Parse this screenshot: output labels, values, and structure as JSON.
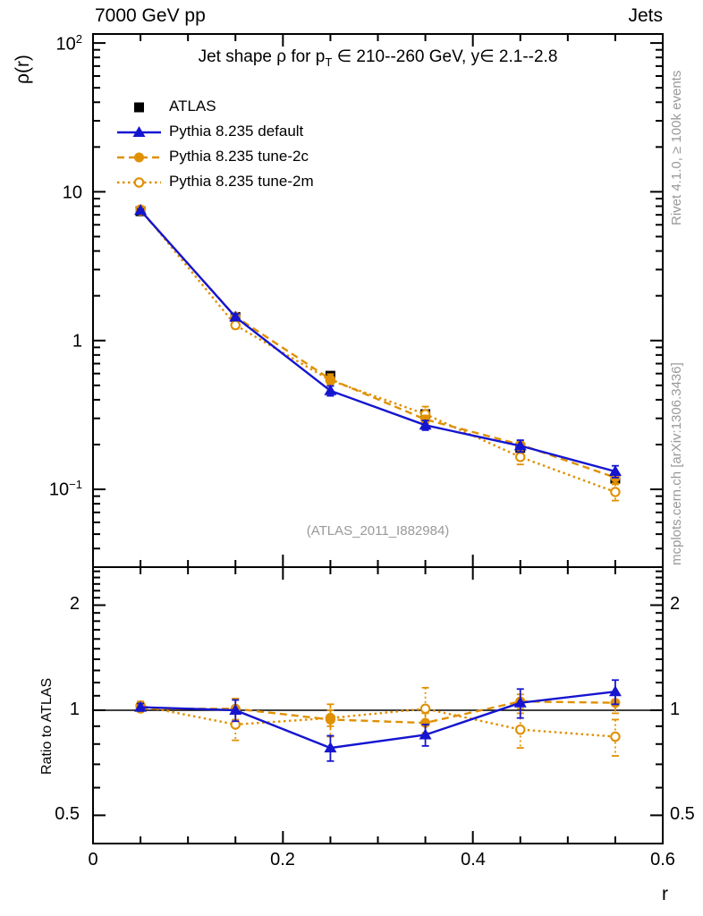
{
  "header": {
    "left": "7000 GeV pp",
    "right": "Jets"
  },
  "title": {
    "pre": "Jet shape ρ for p",
    "sub": "T",
    "post": " ∈ 210--260 GeV, y∈ 2.1--2.8"
  },
  "watermark": "(ATLAS_2011_I882984)",
  "side_notes": {
    "top": "Rivet 4.1.0, ≥ 100k events",
    "bottom": "mcplots.cern.ch [arXiv:1306.3436]"
  },
  "axes": {
    "xlabel": "r",
    "main_ylabel": "ρ(r)",
    "ratio_ylabel": "Ratio to ATLAS",
    "main_yticks": [
      {
        "b": "10",
        "e": "2"
      },
      {
        "b": "10",
        "e": ""
      },
      {
        "b": "1",
        "e": ""
      },
      {
        "b": "10",
        "e": "−1"
      }
    ],
    "ratio_yticks": [
      "2",
      "1",
      "0.5"
    ],
    "xticks": [
      "0",
      "0.2",
      "0.4",
      "0.6"
    ]
  },
  "colors": {
    "atlas": "#000000",
    "pythia_default": "#1515d0",
    "pythia_tunes": "#e09000",
    "annotation_gray": "#999999"
  },
  "chart_data": [
    {
      "type": "line",
      "title": "Jet shape ρ for p_T ∈ 210--260 GeV, y∈ 2.1--2.8",
      "xlabel": "r",
      "ylabel": "ρ(r)",
      "yscale": "log",
      "xlim": [
        0,
        0.6
      ],
      "ylim": [
        0.03,
        115
      ],
      "grid": false,
      "legend_position": "top-left",
      "x": [
        0.05,
        0.15,
        0.25,
        0.35,
        0.45,
        0.55
      ],
      "series": [
        {
          "name": "ATLAS",
          "color": "#000000",
          "marker": "square",
          "line": "none",
          "values": [
            7.4,
            1.44,
            0.58,
            0.32,
            0.19,
            0.118
          ],
          "yerr": [
            0.25,
            0.05,
            0.03,
            0.018,
            0.012,
            0.008
          ]
        },
        {
          "name": "Pythia 8.235 default",
          "color": "#1515d0",
          "marker": "triangle",
          "line": "solid",
          "values": [
            7.5,
            1.44,
            0.46,
            0.27,
            0.196,
            0.132
          ],
          "yerr": [
            0.15,
            0.07,
            0.035,
            0.02,
            0.018,
            0.012
          ]
        },
        {
          "name": "Pythia 8.235 tune-2c",
          "color": "#e09000",
          "marker": "circle",
          "line": "dashed",
          "values": [
            7.45,
            1.45,
            0.55,
            0.295,
            0.2,
            0.12
          ],
          "yerr": [
            0.15,
            0.06,
            0.045,
            0.018,
            0.012,
            0.01
          ]
        },
        {
          "name": "Pythia 8.235 tune-2m",
          "color": "#e09000",
          "marker": "circle-open",
          "line": "dotted",
          "values": [
            7.6,
            1.27,
            0.54,
            0.32,
            0.165,
            0.096
          ],
          "yerr": [
            0.2,
            0.07,
            0.03,
            0.04,
            0.018,
            0.012
          ]
        }
      ]
    },
    {
      "type": "line",
      "title": "",
      "xlabel": "r",
      "ylabel": "Ratio to ATLAS",
      "yscale": "log",
      "xlim": [
        0,
        0.6
      ],
      "ylim": [
        0.415,
        2.57
      ],
      "grid": false,
      "ref_line": 1,
      "x": [
        0.05,
        0.15,
        0.25,
        0.35,
        0.45,
        0.55
      ],
      "series": [
        {
          "name": "Pythia 8.235 default",
          "color": "#1515d0",
          "marker": "triangle",
          "line": "solid",
          "values": [
            1.02,
            1.0,
            0.78,
            0.85,
            1.05,
            1.13
          ],
          "yerr": [
            0.025,
            0.07,
            0.065,
            0.06,
            0.1,
            0.09
          ]
        },
        {
          "name": "Pythia 8.235 tune-2c",
          "color": "#e09000",
          "marker": "circle",
          "line": "dashed",
          "values": [
            1.01,
            1.01,
            0.94,
            0.92,
            1.06,
            1.05
          ],
          "yerr": [
            0.02,
            0.07,
            0.1,
            0.06,
            0.05,
            0.07
          ]
        },
        {
          "name": "Pythia 8.235 tune-2m",
          "color": "#e09000",
          "marker": "circle-open",
          "line": "dotted",
          "values": [
            1.03,
            0.91,
            0.95,
            1.01,
            0.88,
            0.84
          ],
          "yerr": [
            0.03,
            0.09,
            0.05,
            0.15,
            0.1,
            0.1
          ]
        }
      ]
    }
  ]
}
